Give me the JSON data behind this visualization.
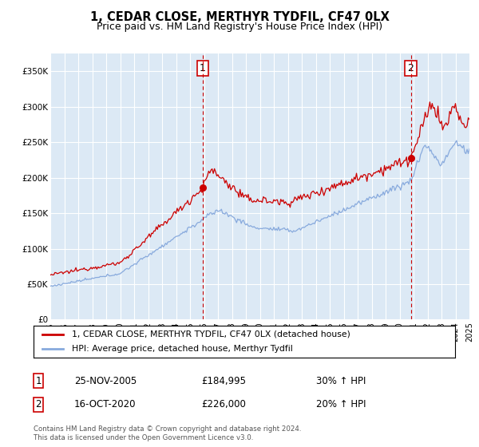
{
  "title": "1, CEDAR CLOSE, MERTHYR TYDFIL, CF47 0LX",
  "subtitle": "Price paid vs. HM Land Registry's House Price Index (HPI)",
  "plot_bg_color": "#dce9f5",
  "ylim": [
    0,
    375000
  ],
  "yticks": [
    0,
    50000,
    100000,
    150000,
    200000,
    250000,
    300000,
    350000
  ],
  "ytick_labels": [
    "£0",
    "£50K",
    "£100K",
    "£150K",
    "£200K",
    "£250K",
    "£300K",
    "£350K"
  ],
  "x_start_year": 1995,
  "x_end_year": 2025,
  "transaction1_date": "25-NOV-2005",
  "transaction1_x": 2005.9,
  "transaction1_price": 184995,
  "transaction1_label": "1",
  "transaction1_hpi": "30% ↑ HPI",
  "transaction2_date": "16-OCT-2020",
  "transaction2_x": 2020.8,
  "transaction2_price": 226000,
  "transaction2_label": "2",
  "transaction2_hpi": "20% ↑ HPI",
  "legend_line1": "1, CEDAR CLOSE, MERTHYR TYDFIL, CF47 0LX (detached house)",
  "legend_line2": "HPI: Average price, detached house, Merthyr Tydfil",
  "footnote": "Contains HM Land Registry data © Crown copyright and database right 2024.\nThis data is licensed under the Open Government Licence v3.0.",
  "line_red_color": "#cc0000",
  "line_blue_color": "#88aadd"
}
